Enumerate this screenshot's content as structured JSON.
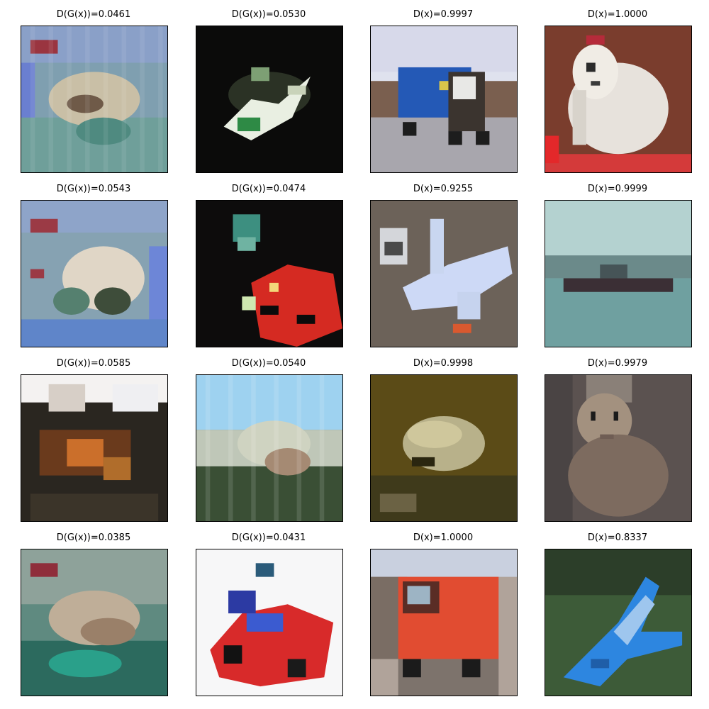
{
  "figure": {
    "panels": [
      {
        "label": "D(G(x))=0.0461",
        "kind": "generated",
        "content": "blue-green noisy generated image with pale blob and red patch at top-left"
      },
      {
        "label": "D(G(x))=0.0530",
        "kind": "generated",
        "content": "dark generated image with white and green bird-like shape"
      },
      {
        "label": "D(x)=0.9997",
        "kind": "real",
        "content": "blue truck on a street under a pale sky"
      },
      {
        "label": "D(x)=1.0000",
        "kind": "real",
        "content": "white fluffy dog against a brown wall with red at bottom"
      },
      {
        "label": "D(G(x))=0.0543",
        "kind": "generated",
        "content": "blue-green noisy generated image with pale blob and red patch at top-left"
      },
      {
        "label": "D(G(x))=0.0474",
        "kind": "generated",
        "content": "dark generated image with red car-like shape"
      },
      {
        "label": "D(x)=0.9255",
        "kind": "real",
        "content": "light blue airplane on brown ground"
      },
      {
        "label": "D(x)=0.9999",
        "kind": "real",
        "content": "dark ship on teal water under a hazy sky"
      },
      {
        "label": "D(G(x))=0.0585",
        "kind": "generated",
        "content": "dark and orange generated image on white background"
      },
      {
        "label": "D(G(x))=0.0540",
        "kind": "generated",
        "content": "light blue sky over green and beige generated scene"
      },
      {
        "label": "D(x)=0.9998",
        "kind": "real",
        "content": "pale frog on olive brown ground"
      },
      {
        "label": "D(x)=0.9979",
        "kind": "real",
        "content": "tabby cat sitting against a grey wall"
      },
      {
        "label": "D(G(x))=0.0385",
        "kind": "generated",
        "content": "green noisy generated image with pale blob and red patch at top-left"
      },
      {
        "label": "D(G(x))=0.0431",
        "kind": "generated",
        "content": "red and blue car-like shape on white background"
      },
      {
        "label": "D(x)=1.0000",
        "kind": "real",
        "content": "red truck on a street"
      },
      {
        "label": "D(x)=0.8337",
        "kind": "real",
        "content": "blue toy airplane on green grass"
      }
    ]
  }
}
